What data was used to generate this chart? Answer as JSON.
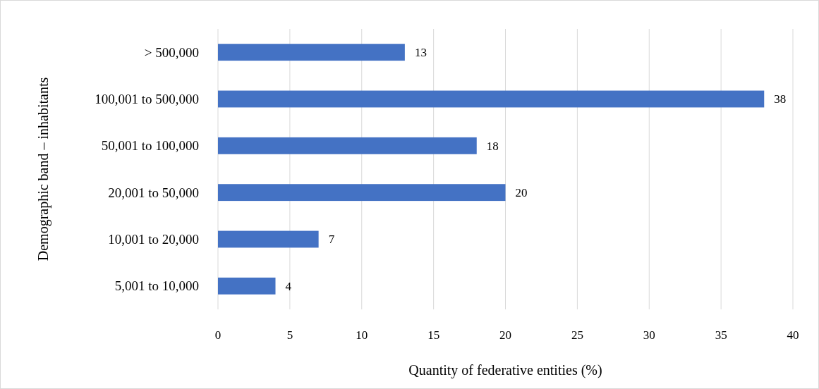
{
  "chart_data": {
    "type": "bar",
    "orientation": "horizontal",
    "xlabel": "Quantity of federative entities (%)",
    "ylabel": "Demographic band – inhabitants",
    "categories": [
      "> 500,000",
      "100,001 to 500,000",
      "50,001 to 100,000",
      "20,001 to 50,000",
      "10,001 to 20,000",
      "5,001 to 10,000"
    ],
    "values": [
      13,
      38,
      18,
      20,
      7,
      4
    ],
    "color": "#4472c4",
    "xlim": [
      0,
      40
    ],
    "xticks": [
      0,
      5,
      10,
      15,
      20,
      25,
      30,
      35,
      40
    ],
    "grid": "x",
    "data_labels": true
  }
}
